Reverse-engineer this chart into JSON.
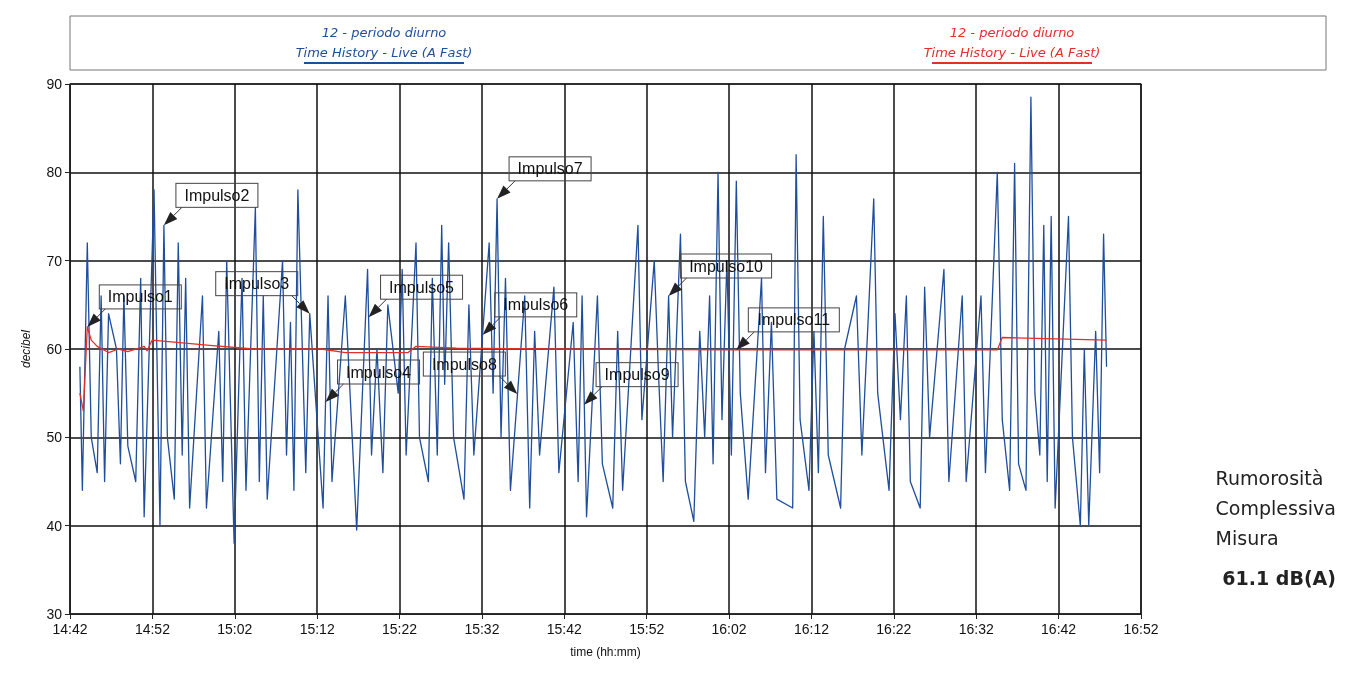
{
  "chart_data": {
    "type": "line",
    "xlabel": "time (hh:mm)",
    "ylabel": "decibel",
    "xlim": [
      14.7,
      16.8667
    ],
    "xticks": [
      {
        "value": 14.7,
        "label": "14:42"
      },
      {
        "value": 14.8667,
        "label": "14:52"
      },
      {
        "value": 15.0333,
        "label": "15:02"
      },
      {
        "value": 15.2,
        "label": "15:12"
      },
      {
        "value": 15.3667,
        "label": "15:22"
      },
      {
        "value": 15.5333,
        "label": "15:32"
      },
      {
        "value": 15.7,
        "label": "15:42"
      },
      {
        "value": 15.8667,
        "label": "15:52"
      },
      {
        "value": 16.0333,
        "label": "16:02"
      },
      {
        "value": 16.2,
        "label": "16:12"
      },
      {
        "value": 16.3667,
        "label": "16:22"
      },
      {
        "value": 16.5333,
        "label": "16:32"
      },
      {
        "value": 16.7,
        "label": "16:42"
      },
      {
        "value": 16.8667,
        "label": "16:52"
      }
    ],
    "ylim": [
      30,
      90
    ],
    "yticks": [
      30,
      40,
      50,
      60,
      70,
      80,
      90
    ],
    "grid": true,
    "legend": "top",
    "marker": "none",
    "line_style": "solid",
    "series": [
      {
        "name": "12 - periodo diurno\nTime History - Live (A Fast)",
        "color": "#1f4e9c",
        "x": [
          14.72,
          14.725,
          14.735,
          14.743,
          14.755,
          14.763,
          14.77,
          14.778,
          14.794,
          14.802,
          14.809,
          14.817,
          14.833,
          14.843,
          14.85,
          14.87,
          14.882,
          14.89,
          14.897,
          14.911,
          14.919,
          14.927,
          14.934,
          14.942,
          14.968,
          14.976,
          15.001,
          15.009,
          15.017,
          15.032,
          15.048,
          15.056,
          15.075,
          15.083,
          15.091,
          15.099,
          15.13,
          15.138,
          15.146,
          15.153,
          15.161,
          15.177,
          15.185,
          15.212,
          15.222,
          15.23,
          15.257,
          15.28,
          15.302,
          15.31,
          15.321,
          15.333,
          15.343,
          15.364,
          15.372,
          15.38,
          15.4,
          15.407,
          15.425,
          15.433,
          15.443,
          15.452,
          15.458,
          15.466,
          15.476,
          15.497,
          15.507,
          15.517,
          15.548,
          15.556,
          15.564,
          15.572,
          15.581,
          15.591,
          15.62,
          15.63,
          15.64,
          15.65,
          15.679,
          15.689,
          15.718,
          15.728,
          15.736,
          15.745,
          15.767,
          15.777,
          15.798,
          15.808,
          15.818,
          15.849,
          15.857,
          15.882,
          15.89,
          15.9,
          15.911,
          15.919,
          15.935,
          15.945,
          15.962,
          15.974,
          15.984,
          15.994,
          16.001,
          16.011,
          16.019,
          16.029,
          16.038,
          16.048,
          16.056,
          16.072,
          16.099,
          16.107,
          16.119,
          16.13,
          16.162,
          16.169,
          16.177,
          16.195,
          16.205,
          16.214,
          16.224,
          16.234,
          16.259,
          16.267,
          16.291,
          16.302,
          16.326,
          16.334,
          16.357,
          16.369,
          16.38,
          16.392,
          16.4,
          16.42,
          16.429,
          16.439,
          16.468,
          16.478,
          16.505,
          16.513,
          16.543,
          16.552,
          16.576,
          16.586,
          16.601,
          16.611,
          16.619,
          16.634,
          16.644,
          16.652,
          16.662,
          16.67,
          16.677,
          16.685,
          16.693,
          16.72,
          16.728,
          16.744,
          16.752,
          16.761,
          16.775,
          16.783,
          16.791,
          16.797
        ],
        "values": [
          58,
          44,
          72,
          50,
          46,
          66,
          45,
          64,
          60,
          47,
          66,
          49,
          45,
          68,
          41,
          78,
          40,
          74,
          50,
          43,
          72,
          48,
          68,
          42,
          66,
          42,
          62,
          45,
          70,
          38,
          68,
          44,
          76,
          45,
          66,
          43,
          70,
          48,
          63,
          44,
          78,
          46,
          64,
          42,
          66,
          45,
          66,
          39.5,
          69,
          48,
          60,
          46,
          65,
          55,
          69,
          48,
          72,
          50,
          45,
          68,
          48,
          74,
          56,
          72,
          50,
          43,
          65,
          48,
          72,
          55,
          77,
          50,
          68,
          44,
          66,
          42,
          62,
          48,
          67,
          46,
          63,
          45,
          66,
          41,
          66,
          47,
          42,
          62,
          44,
          74,
          52,
          70,
          58,
          45,
          66,
          50,
          73,
          45,
          40.5,
          62,
          50,
          66,
          47,
          80,
          52,
          70,
          48,
          79,
          55,
          43,
          68,
          46,
          63,
          43,
          42,
          82,
          52,
          44,
          62,
          46,
          75,
          48,
          42,
          60,
          66,
          48,
          77,
          55,
          44,
          64,
          52,
          66,
          45,
          42,
          67,
          50,
          69,
          45,
          66,
          45,
          66,
          46,
          80,
          52,
          44,
          81,
          47,
          44,
          88.5,
          55,
          48,
          74,
          45,
          75,
          42,
          75,
          50,
          40,
          60,
          40,
          62,
          46,
          73,
          58
        ]
      },
      {
        "name": "12 - periodo diurno\nTime History - Live (A Fast)",
        "color": "#e0302a",
        "x": [
          14.72,
          14.727,
          14.735,
          14.743,
          14.755,
          14.778,
          14.798,
          14.817,
          14.85,
          14.856,
          14.866,
          14.905,
          14.983,
          15.071,
          15.208,
          15.257,
          15.384,
          15.4,
          15.482,
          15.677,
          16.048,
          16.576,
          16.586,
          16.797
        ],
        "values": [
          55,
          53,
          62.5,
          61,
          60.3,
          59.6,
          60,
          59.7,
          60.3,
          59.8,
          61,
          60.8,
          60.4,
          60,
          60,
          59.6,
          59.6,
          60.3,
          60.1,
          60,
          59.9,
          59.9,
          61.3,
          61
        ]
      }
    ],
    "annotations": [
      {
        "text": "Impulso1",
        "x": 14.735,
        "y": 62.5
      },
      {
        "text": "Impulso2",
        "x": 14.89,
        "y": 74
      },
      {
        "text": "Impulso3",
        "x": 15.185,
        "y": 64
      },
      {
        "text": "Impulso4",
        "x": 15.217,
        "y": 54
      },
      {
        "text": "Impulso5",
        "x": 15.304,
        "y": 63.6
      },
      {
        "text": "Impulso6",
        "x": 15.535,
        "y": 61.6
      },
      {
        "text": "Impulso7",
        "x": 15.564,
        "y": 77
      },
      {
        "text": "Impulso8",
        "x": 15.605,
        "y": 54.9
      },
      {
        "text": "Impulso9",
        "x": 15.74,
        "y": 53.7
      },
      {
        "text": "Impulso10",
        "x": 15.911,
        "y": 66
      },
      {
        "text": "Impulso11",
        "x": 16.048,
        "y": 59.9
      },
      "Rumorosità\nComplessiva\nMisura",
      "61.1 dB(A)"
    ]
  }
}
